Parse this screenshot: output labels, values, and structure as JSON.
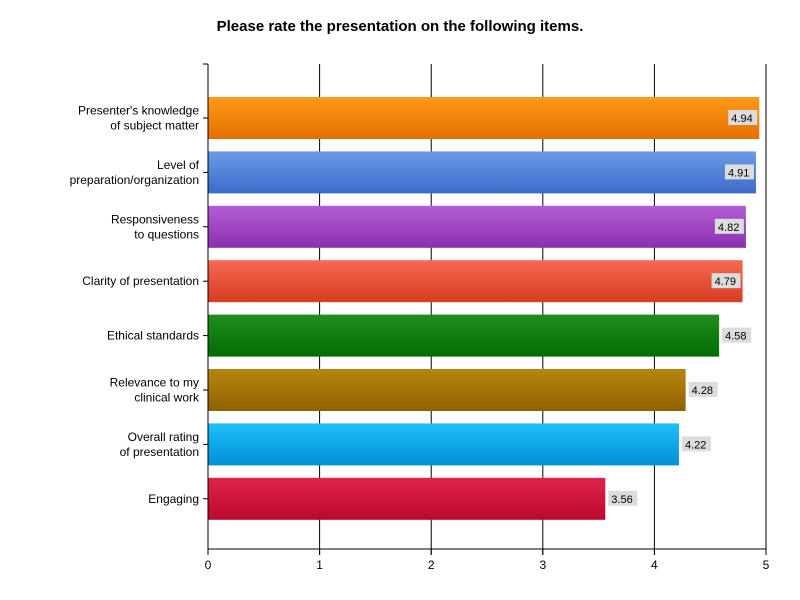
{
  "chart_data": {
    "type": "bar",
    "orientation": "horizontal",
    "title": "Please rate the presentation on the following items.",
    "xlabel": "",
    "ylabel": "",
    "xlim": [
      0,
      5
    ],
    "x_ticks": [
      "0",
      "1",
      "2",
      "3",
      "4",
      "5"
    ],
    "grid": true,
    "categories": [
      [
        "Presenter's knowledge",
        "of subject matter"
      ],
      [
        "Level of",
        "preparation/organization"
      ],
      [
        "Responsiveness",
        "to questions"
      ],
      [
        "Clarity of presentation"
      ],
      [
        "Ethical standards"
      ],
      [
        "Relevance to my",
        "clinical work"
      ],
      [
        "Overall rating",
        "of presentation"
      ],
      [
        "Engaging"
      ]
    ],
    "values": [
      4.94,
      4.91,
      4.82,
      4.79,
      4.58,
      4.28,
      4.22,
      3.56
    ],
    "value_labels": [
      "4.94",
      "4.91",
      "4.82",
      "4.79",
      "4.58",
      "4.28",
      "4.22",
      "3.56"
    ],
    "colors": [
      [
        "#ff9a1a",
        "#e47000"
      ],
      [
        "#6b9be8",
        "#3a6bc8"
      ],
      [
        "#b35ed6",
        "#8a2fb0"
      ],
      [
        "#f56a52",
        "#d63c22"
      ],
      [
        "#1f8f1f",
        "#036b03"
      ],
      [
        "#b8860f",
        "#8e6200"
      ],
      [
        "#1ec0fb",
        "#0090d6"
      ],
      [
        "#e0224a",
        "#b80a2c"
      ]
    ]
  }
}
